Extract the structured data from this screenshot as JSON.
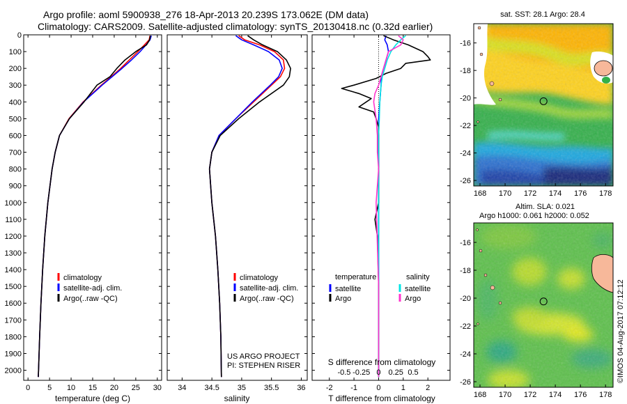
{
  "header": {
    "line1": "Argo profile: aoml 5900938_276 18-Apr-2013 20.239S 173.062E (DM data)",
    "line2": "Climatology: CARS2009. Satellite-adjusted climatology: synTS_20130418.nc (0.32d earlier)"
  },
  "colors": {
    "climatology": "#ff0000",
    "satellite": "#0000ff",
    "argo": "#000000",
    "salinity_sat": "#00e5e5",
    "salinity_argo": "#ff33cc"
  },
  "chart_data": [
    {
      "id": "temperature",
      "type": "line",
      "xlabel": "temperature (deg C)",
      "xlim": [
        -1,
        31
      ],
      "ylim": [
        2060,
        0
      ],
      "xticks": [
        0,
        5,
        10,
        15,
        20,
        25,
        30
      ],
      "yticks": [
        0,
        100,
        200,
        300,
        400,
        500,
        600,
        700,
        800,
        900,
        1000,
        1100,
        1200,
        1300,
        1400,
        1500,
        1600,
        1700,
        1800,
        1900,
        2000
      ],
      "legend": {
        "placement": "lower-middle",
        "entries": [
          "climatology",
          "satellite-adj. clim.",
          "Argo(..raw -QC)"
        ]
      },
      "series": [
        {
          "name": "climatology",
          "color": "#ff0000",
          "depth": [
            5,
            30,
            60,
            100,
            150,
            200,
            250,
            300,
            400,
            500,
            600,
            700,
            800,
            1000,
            1200,
            1400,
            1600,
            1800,
            2040
          ],
          "values": [
            28.3,
            28.1,
            27.0,
            25.5,
            23.5,
            21.5,
            19.3,
            17.0,
            12.8,
            9.5,
            7.3,
            6.3,
            5.6,
            4.6,
            3.9,
            3.4,
            3.0,
            2.7,
            2.4
          ]
        },
        {
          "name": "satellite-adj. clim.",
          "color": "#0000ff",
          "depth": [
            5,
            30,
            60,
            100,
            150,
            200,
            250,
            300,
            400,
            500,
            600,
            700,
            800,
            1000,
            1200,
            1400,
            1600,
            1800,
            2040
          ],
          "values": [
            28.6,
            28.3,
            27.4,
            26.0,
            24.0,
            21.8,
            19.5,
            17.2,
            12.9,
            9.6,
            7.3,
            6.3,
            5.6,
            4.6,
            3.9,
            3.4,
            3.0,
            2.7,
            2.4
          ]
        },
        {
          "name": "Argo(..raw -QC)",
          "color": "#000000",
          "depth": [
            5,
            30,
            60,
            100,
            150,
            200,
            250,
            300,
            350,
            400,
            500,
            600,
            700,
            800,
            1000,
            1200,
            1400,
            1600,
            1800,
            2040
          ],
          "values": [
            28.4,
            28.2,
            27.5,
            25.0,
            22.5,
            20.6,
            19.0,
            16.0,
            14.5,
            13.0,
            9.6,
            7.3,
            6.3,
            5.6,
            4.6,
            3.9,
            3.4,
            3.0,
            2.7,
            2.4
          ]
        }
      ]
    },
    {
      "id": "salinity",
      "type": "line",
      "xlabel": "salinity",
      "xlim": [
        33.75,
        36.1
      ],
      "ylim": [
        2060,
        0
      ],
      "xticks": [
        34,
        34.5,
        35,
        35.5,
        36
      ],
      "legend": {
        "placement": "lower-middle",
        "entries": [
          "climatology",
          "satellite-adj. clim.",
          "Argo(..raw -QC)"
        ]
      },
      "annotation": [
        "US ARGO PROJECT",
        "PI: STEPHEN RISER"
      ],
      "series": [
        {
          "name": "climatology",
          "color": "#ff0000",
          "depth": [
            5,
            30,
            60,
            100,
            150,
            200,
            250,
            300,
            400,
            500,
            600,
            700,
            800,
            1000,
            1200,
            1400,
            1600,
            1800,
            2040
          ],
          "values": [
            34.95,
            35.05,
            35.3,
            35.55,
            35.7,
            35.72,
            35.65,
            35.5,
            35.2,
            34.9,
            34.62,
            34.5,
            34.46,
            34.5,
            34.56,
            34.6,
            34.63,
            34.65,
            34.66
          ]
        },
        {
          "name": "satellite-adj. clim.",
          "color": "#0000ff",
          "depth": [
            5,
            30,
            60,
            100,
            150,
            200,
            250,
            300,
            400,
            500,
            600,
            700,
            800,
            1000,
            1200,
            1400,
            1600,
            1800,
            2040
          ],
          "values": [
            34.9,
            35.0,
            35.2,
            35.45,
            35.63,
            35.68,
            35.62,
            35.48,
            35.18,
            34.9,
            34.62,
            34.5,
            34.46,
            34.5,
            34.56,
            34.6,
            34.63,
            34.65,
            34.66
          ]
        },
        {
          "name": "Argo(..raw -QC)",
          "color": "#000000",
          "depth": [
            5,
            30,
            60,
            100,
            150,
            200,
            250,
            300,
            400,
            500,
            600,
            700,
            800,
            1000,
            1200,
            1400,
            1600,
            1800,
            2040
          ],
          "values": [
            35.1,
            35.2,
            35.35,
            35.6,
            35.75,
            35.82,
            35.8,
            35.7,
            35.3,
            34.95,
            34.64,
            34.5,
            34.46,
            34.5,
            34.56,
            34.6,
            34.63,
            34.65,
            34.66
          ]
        }
      ]
    },
    {
      "id": "difference",
      "type": "line",
      "xlabel": "T difference from climatology",
      "xlabel_top": "S difference from climatology",
      "xlim": [
        -2.7,
        2.9
      ],
      "ylim": [
        2060,
        0
      ],
      "xticks": [
        -2,
        -1,
        0,
        1,
        2
      ],
      "sticks": [
        {
          "label": "-0.5",
          "x": -1.4
        },
        {
          "label": "-0.25",
          "x": -0.7
        },
        {
          "label": "0",
          "x": 0
        },
        {
          "label": "0.25",
          "x": 0.7
        },
        {
          "label": "0.5",
          "x": 1.4
        }
      ],
      "legend": {
        "placement": "lower-middle",
        "temperature_title": "temperature",
        "salinity_title": "salinity",
        "entries": [
          "satellite",
          "Argo",
          "satellite",
          "Argo"
        ]
      },
      "series": [
        {
          "name": "temperature satellite",
          "color": "#0000ff",
          "depth": [
            5,
            30,
            60,
            100,
            150,
            200,
            250,
            300,
            400,
            500,
            600,
            700,
            800,
            1000,
            1500,
            2040
          ],
          "values": [
            0.3,
            0.25,
            0.35,
            0.4,
            0.3,
            0.2,
            0.1,
            0.1,
            0.05,
            0.0,
            0.0,
            0.0,
            0.0,
            0.0,
            0.0,
            0.0
          ]
        },
        {
          "name": "temperature Argo",
          "color": "#000000",
          "depth": [
            5,
            30,
            60,
            100,
            130,
            150,
            170,
            200,
            230,
            260,
            300,
            320,
            350,
            380,
            400,
            430,
            460,
            500,
            550,
            600,
            700,
            800,
            1000,
            1100,
            1200,
            1500,
            1800,
            2040
          ],
          "values": [
            0.2,
            0.6,
            1.2,
            1.8,
            2.0,
            2.1,
            1.1,
            0.9,
            0.3,
            -0.1,
            -1.0,
            -1.5,
            -0.8,
            -0.3,
            -0.5,
            -0.8,
            -0.2,
            -0.1,
            0.0,
            0.0,
            0.0,
            0.0,
            0.0,
            -0.15,
            -0.05,
            0.0,
            0.0,
            0.0
          ]
        },
        {
          "name": "salinity satellite",
          "color": "#00e5e5",
          "depth": [
            5,
            30,
            60,
            100,
            150,
            200,
            250,
            300,
            400,
            500,
            600,
            700,
            800,
            1000,
            1500,
            2040
          ],
          "values": [
            1.1,
            0.9,
            0.7,
            0.5,
            0.35,
            0.25,
            0.15,
            0.1,
            0.05,
            0.03,
            0.0,
            0.0,
            0.0,
            0.0,
            0.0,
            0.0
          ]
        },
        {
          "name": "salinity Argo",
          "color": "#ff33cc",
          "depth": [
            5,
            30,
            60,
            100,
            150,
            200,
            250,
            300,
            350,
            400,
            500,
            600,
            700,
            800,
            1000,
            1500,
            2040
          ],
          "values": [
            0.8,
            1.0,
            0.9,
            0.4,
            0.3,
            0.2,
            0.1,
            0.0,
            -0.15,
            -0.2,
            -0.1,
            -0.05,
            -0.05,
            0.0,
            -0.1,
            0.0,
            0.0
          ]
        }
      ]
    }
  ],
  "maps": {
    "sst": {
      "title": "sat. SST: 28.1 Argo: 28.4",
      "xticks": [
        "168",
        "170",
        "172",
        "174",
        "176",
        "178"
      ],
      "yticks": [
        "-16",
        "-18",
        "-20",
        "-22",
        "-24",
        "-26"
      ],
      "marker": {
        "lon": 173.062,
        "lat": -20.239
      },
      "lonlim": [
        167.5,
        178.6
      ],
      "latlim": [
        -26.4,
        -14.6
      ]
    },
    "sla": {
      "title1": "Altim. SLA: 0.021",
      "title2": "Argo h1000: 0.061 h2000: 0.052",
      "xticks": [
        "168",
        "170",
        "172",
        "174",
        "176",
        "178"
      ],
      "yticks": [
        "-16",
        "-18",
        "-20",
        "-22",
        "-24",
        "-26"
      ],
      "marker": {
        "lon": 173.062,
        "lat": -20.239
      },
      "lonlim": [
        167.5,
        178.6
      ],
      "latlim": [
        -26.4,
        -14.6
      ]
    }
  },
  "credit": "©IMOS 04-Aug-2017 07:12:12"
}
